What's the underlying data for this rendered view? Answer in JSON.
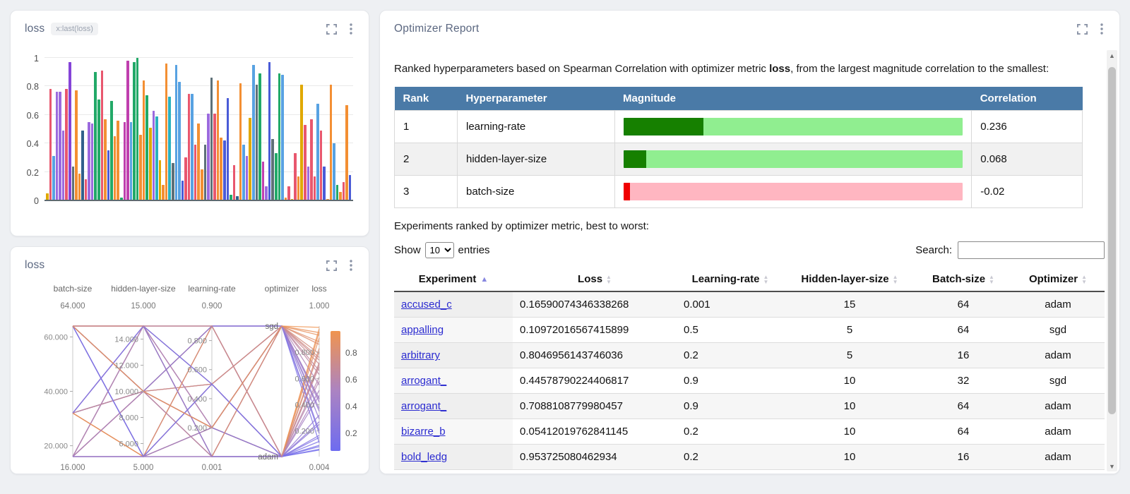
{
  "app": {
    "background": "#eef0f3"
  },
  "panels": {
    "bar": {
      "title": "loss",
      "badge": "x:last(loss)"
    },
    "pcoords": {
      "title": "loss"
    },
    "report": {
      "title": "Optimizer Report",
      "intro": {
        "prefix": "Ranked hyperparameters based on Spearman Correlation with optimizer metric ",
        "metric": "loss",
        "suffix": ", from the largest magnitude correlation to the smallest:"
      },
      "corr_table": {
        "headers": [
          "Rank",
          "Hyperparameter",
          "Magnitude",
          "Correlation"
        ],
        "header_bg": "#4a7aa7",
        "rows": [
          {
            "rank": "1",
            "name": "learning-rate",
            "correlation": "0.236",
            "magnitude": 0.236,
            "direction": "positive"
          },
          {
            "rank": "2",
            "name": "hidden-layer-size",
            "correlation": "0.068",
            "magnitude": 0.068,
            "direction": "positive"
          },
          {
            "rank": "3",
            "name": "batch-size",
            "correlation": "-0.02",
            "magnitude": 0.02,
            "direction": "negative"
          }
        ],
        "colors": {
          "positive_fill": "#168000",
          "positive_track": "#90ee90",
          "negative_fill": "#f00000",
          "negative_track": "#ffb6c1"
        }
      },
      "experiments_intro": "Experiments ranked by optimizer metric, best to worst:",
      "controls": {
        "show_label": "Show",
        "page_size": "10",
        "entries_label": "entries",
        "search_label": "Search:",
        "search_value": ""
      },
      "exp_table": {
        "headers": [
          {
            "label": "Experiment",
            "sort": "asc"
          },
          {
            "label": "Loss",
            "sort": "none"
          },
          {
            "label": "Learning-rate",
            "sort": "none"
          },
          {
            "label": "Hidden-layer-size",
            "sort": "none"
          },
          {
            "label": "Batch-size",
            "sort": "none"
          },
          {
            "label": "Optimizer",
            "sort": "none"
          }
        ],
        "rows": [
          {
            "experiment": "accused_c",
            "loss": "0.16590074346338268",
            "learning_rate": "0.001",
            "hidden_layer_size": "15",
            "batch_size": "64",
            "optimizer": "adam"
          },
          {
            "experiment": "appalling",
            "loss": "0.10972016567415899",
            "learning_rate": "0.5",
            "hidden_layer_size": "5",
            "batch_size": "64",
            "optimizer": "sgd"
          },
          {
            "experiment": "arbitrary",
            "loss": "0.8046956143746036",
            "learning_rate": "0.2",
            "hidden_layer_size": "5",
            "batch_size": "16",
            "optimizer": "adam"
          },
          {
            "experiment": "arrogant_",
            "loss": "0.44578790224406817",
            "learning_rate": "0.9",
            "hidden_layer_size": "10",
            "batch_size": "32",
            "optimizer": "sgd"
          },
          {
            "experiment": "arrogant_",
            "loss": "0.7088108779980457",
            "learning_rate": "0.9",
            "hidden_layer_size": "10",
            "batch_size": "64",
            "optimizer": "adam"
          },
          {
            "experiment": "bizarre_b",
            "loss": "0.05412019762841145",
            "learning_rate": "0.2",
            "hidden_layer_size": "10",
            "batch_size": "64",
            "optimizer": "adam"
          },
          {
            "experiment": "bold_ledg",
            "loss": "0.953725080462934",
            "learning_rate": "0.2",
            "hidden_layer_size": "10",
            "batch_size": "16",
            "optimizer": "adam"
          }
        ]
      }
    }
  },
  "chart_data": [
    {
      "type": "bar",
      "title": "loss",
      "ylabel": "last(loss)",
      "ylim": [
        0,
        1
      ],
      "yticks": [
        0,
        0.2,
        0.4,
        0.6,
        0.8,
        1
      ],
      "grid": true,
      "palette": [
        "#e0a800",
        "#e8576e",
        "#58a2e2",
        "#9b6ade",
        "#8544d8",
        "#5e7078",
        "#f38f33",
        "#31608c",
        "#22a968",
        "#2ab1bf",
        "#4a5bd7",
        "#bf3fae"
      ],
      "bars": [
        [
          0.05,
          0
        ],
        [
          0.78,
          1
        ],
        [
          0.31,
          2
        ],
        [
          0.76,
          3
        ],
        [
          0.76,
          3
        ],
        [
          0.49,
          3
        ],
        [
          0.78,
          1
        ],
        [
          0.97,
          4
        ],
        [
          0.24,
          5
        ],
        [
          0.77,
          6
        ],
        [
          0.19,
          6
        ],
        [
          0.49,
          7
        ],
        [
          0.15,
          1
        ],
        [
          0.55,
          3
        ],
        [
          0.54,
          3
        ],
        [
          0.9,
          8
        ],
        [
          0.71,
          8
        ],
        [
          0.91,
          1
        ],
        [
          0.57,
          6
        ],
        [
          0.35,
          10
        ],
        [
          0.7,
          8
        ],
        [
          0.45,
          6
        ],
        [
          0.56,
          6
        ],
        [
          0.02,
          8
        ],
        [
          0.55,
          11
        ],
        [
          0.98,
          11
        ],
        [
          0.55,
          2
        ],
        [
          0.97,
          8
        ],
        [
          1.0,
          8
        ],
        [
          0.46,
          6
        ],
        [
          0.84,
          6
        ],
        [
          0.74,
          8
        ],
        [
          0.51,
          0
        ],
        [
          0.63,
          3
        ],
        [
          0.59,
          9
        ],
        [
          0.28,
          0
        ],
        [
          0.11,
          6
        ],
        [
          0.96,
          6
        ],
        [
          0.73,
          9
        ],
        [
          0.26,
          5
        ],
        [
          0.95,
          2
        ],
        [
          0.83,
          2
        ],
        [
          0.14,
          10
        ],
        [
          0.3,
          1
        ],
        [
          0.75,
          1
        ],
        [
          0.75,
          2
        ],
        [
          0.39,
          1
        ],
        [
          0.54,
          6
        ],
        [
          0.22,
          6
        ],
        [
          0.39,
          5
        ],
        [
          0.61,
          3
        ],
        [
          0.86,
          5
        ],
        [
          0.61,
          1
        ],
        [
          0.84,
          6
        ],
        [
          0.44,
          6
        ],
        [
          0.42,
          10
        ],
        [
          0.72,
          10
        ],
        [
          0.04,
          8
        ],
        [
          0.25,
          1
        ],
        [
          0.03,
          7
        ],
        [
          0.82,
          6
        ],
        [
          0.39,
          2
        ],
        [
          0.31,
          3
        ],
        [
          0.58,
          0
        ],
        [
          0.95,
          2
        ],
        [
          0.81,
          5
        ],
        [
          0.89,
          8
        ],
        [
          0.27,
          11
        ],
        [
          0.1,
          3
        ],
        [
          0.97,
          10
        ],
        [
          0.43,
          5
        ],
        [
          0.33,
          8
        ],
        [
          0.89,
          8
        ],
        [
          0.88,
          2
        ],
        [
          0.02,
          6
        ],
        [
          0.1,
          1
        ],
        [
          0.01,
          0
        ],
        [
          0.33,
          1
        ],
        [
          0.17,
          6
        ],
        [
          0.81,
          0
        ],
        [
          0.53,
          1
        ],
        [
          0.24,
          3
        ],
        [
          0.57,
          1
        ],
        [
          0.17,
          1
        ],
        [
          0.68,
          2
        ],
        [
          0.49,
          1
        ],
        [
          0.24,
          10
        ],
        [
          0.01,
          6
        ],
        [
          0.81,
          6
        ],
        [
          0.4,
          2
        ],
        [
          0.11,
          8
        ],
        [
          0.06,
          6
        ],
        [
          0.13,
          1
        ],
        [
          0.67,
          6
        ],
        [
          0.18,
          10
        ]
      ]
    },
    {
      "type": "parallel-coordinates",
      "title": "loss",
      "axes": [
        {
          "name": "batch-size",
          "top_label": "64.000",
          "bottom_label": "16.000",
          "min": 16,
          "max": 64,
          "ticks": [
            {
              "v": 60,
              "label": "60.000"
            },
            {
              "v": 40,
              "label": "40.000"
            },
            {
              "v": 20,
              "label": "20.000"
            }
          ]
        },
        {
          "name": "hidden-layer-size",
          "top_label": "15.000",
          "bottom_label": "5.000",
          "min": 5,
          "max": 15,
          "ticks": [
            {
              "v": 14,
              "label": "14.000"
            },
            {
              "v": 12,
              "label": "12.000"
            },
            {
              "v": 10,
              "label": "10.000"
            },
            {
              "v": 8,
              "label": "8.000"
            },
            {
              "v": 6,
              "label": "6.000"
            }
          ]
        },
        {
          "name": "learning-rate",
          "top_label": "0.900",
          "bottom_label": "0.001",
          "min": 0.001,
          "max": 0.9,
          "ticks": [
            {
              "v": 0.8,
              "label": "0.800"
            },
            {
              "v": 0.6,
              "label": "0.600"
            },
            {
              "v": 0.4,
              "label": "0.400"
            },
            {
              "v": 0.2,
              "label": "0.200"
            }
          ]
        },
        {
          "name": "optimizer",
          "top_label": "sgd",
          "bottom_label": "adam",
          "categories": [
            "sgd",
            "adam"
          ]
        },
        {
          "name": "loss",
          "top_label": "1.000",
          "bottom_label": "0.004",
          "min": 0.004,
          "max": 1.0,
          "ticks": [
            {
              "v": 0.8,
              "label": "0.800"
            },
            {
              "v": 0.6,
              "label": "0.600"
            },
            {
              "v": 0.4,
              "label": "0.400"
            },
            {
              "v": 0.2,
              "label": "0.200"
            }
          ]
        }
      ],
      "colorbar": {
        "ticks": [
          "0.8",
          "0.6",
          "0.4",
          "0.2"
        ],
        "top_color": "#f0944f",
        "bottom_color": "#6e6cf0",
        "maps_to": "loss"
      },
      "runs": [
        [
          64,
          15,
          0.001,
          "adam",
          0.166
        ],
        [
          64,
          5,
          0.5,
          "sgd",
          0.11
        ],
        [
          16,
          5,
          0.2,
          "adam",
          0.805
        ],
        [
          32,
          10,
          0.9,
          "sgd",
          0.446
        ],
        [
          64,
          10,
          0.9,
          "adam",
          0.709
        ],
        [
          64,
          10,
          0.2,
          "adam",
          0.054
        ],
        [
          16,
          10,
          0.2,
          "adam",
          0.954
        ],
        [
          64,
          15,
          0.9,
          "sgd",
          0.88
        ],
        [
          16,
          15,
          0.5,
          "adam",
          0.32
        ],
        [
          32,
          5,
          0.001,
          "sgd",
          0.76
        ],
        [
          64,
          5,
          0.9,
          "adam",
          0.25
        ],
        [
          16,
          10,
          0.5,
          "sgd",
          0.63
        ],
        [
          32,
          15,
          0.2,
          "adam",
          0.15
        ],
        [
          64,
          10,
          0.001,
          "sgd",
          0.95
        ],
        [
          16,
          5,
          0.9,
          "sgd",
          0.42
        ],
        [
          32,
          10,
          0.5,
          "adam",
          0.58
        ],
        [
          64,
          15,
          0.2,
          "sgd",
          0.71
        ],
        [
          16,
          15,
          0.001,
          "adam",
          0.09
        ],
        [
          32,
          5,
          0.5,
          "adam",
          0.83
        ],
        [
          64,
          5,
          0.001,
          "adam",
          0.47
        ],
        [
          16,
          10,
          0.9,
          "adam",
          0.91
        ],
        [
          32,
          15,
          0.9,
          "sgd",
          0.2
        ],
        [
          64,
          15,
          0.5,
          "sgd",
          0.66
        ],
        [
          16,
          5,
          0.001,
          "sgd",
          0.37
        ],
        [
          32,
          10,
          0.001,
          "adam",
          0.12
        ],
        [
          64,
          10,
          0.5,
          "sgd",
          0.79
        ],
        [
          16,
          15,
          0.2,
          "sgd",
          0.55
        ],
        [
          32,
          5,
          0.9,
          "adam",
          0.98
        ],
        [
          64,
          5,
          0.2,
          "sgd",
          0.29
        ],
        [
          16,
          10,
          0.001,
          "adam",
          0.69
        ],
        [
          32,
          15,
          0.5,
          "adam",
          0.06
        ],
        [
          64,
          15,
          0.001,
          "sgd",
          0.86
        ],
        [
          16,
          5,
          0.5,
          "adam",
          0.51
        ],
        [
          32,
          10,
          0.2,
          "sgd",
          0.74
        ],
        [
          64,
          10,
          0.9,
          "sgd",
          0.18
        ],
        [
          16,
          15,
          0.9,
          "adam",
          0.61
        ],
        [
          32,
          5,
          0.2,
          "sgd",
          0.93
        ],
        [
          64,
          5,
          0.5,
          "adam",
          0.08
        ],
        [
          16,
          10,
          0.2,
          "sgd",
          0.44
        ],
        [
          32,
          15,
          0.001,
          "adam",
          0.27
        ],
        [
          64,
          15,
          0.9,
          "adam",
          0.72
        ],
        [
          16,
          5,
          0.2,
          "sgd",
          0.35
        ],
        [
          64,
          10,
          0.2,
          "sgd",
          0.99
        ]
      ]
    }
  ]
}
